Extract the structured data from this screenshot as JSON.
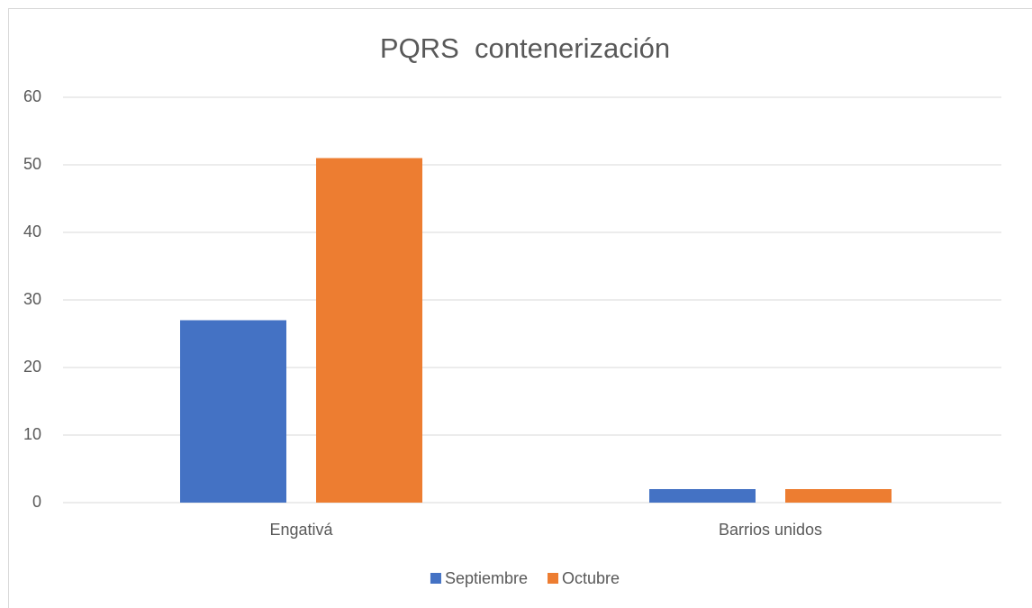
{
  "chart_data": {
    "type": "bar",
    "title": "PQRS  contenerización",
    "categories": [
      "Engativá",
      "Barrios unidos"
    ],
    "series": [
      {
        "name": "Septiembre",
        "color": "#4472c4",
        "values": [
          27,
          2
        ]
      },
      {
        "name": "Octubre",
        "color": "#ed7d31",
        "values": [
          51,
          2
        ]
      }
    ],
    "ylim": [
      0,
      60
    ],
    "yticks": [
      0,
      10,
      20,
      30,
      40,
      50,
      60
    ],
    "grid": true,
    "legend": "bottom"
  }
}
